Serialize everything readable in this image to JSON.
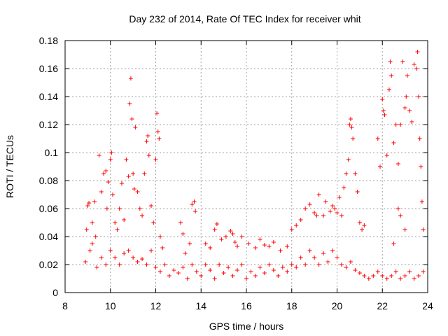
{
  "chart_data": {
    "type": "scatter",
    "title": "Day 232 of 2014, Rate Of TEC Index for receiver whit",
    "xlabel": "GPS time / hours",
    "ylabel": "ROTI / TECUs",
    "xlim": [
      8,
      24
    ],
    "ylim": [
      0,
      0.18
    ],
    "xticks": [
      "8",
      "10",
      "12",
      "14",
      "16",
      "18",
      "20",
      "22",
      "24"
    ],
    "yticks": [
      "0",
      "0.02",
      "0.04",
      "0.06",
      "0.08",
      "0.1",
      "0.12",
      "0.14",
      "0.16",
      "0.18"
    ],
    "grid": true,
    "marker": "plus",
    "color": "#ff0000",
    "series": [
      {
        "name": "ROTI",
        "points": [
          [
            8.9,
            0.022
          ],
          [
            8.95,
            0.045
          ],
          [
            9.0,
            0.062
          ],
          [
            9.05,
            0.064
          ],
          [
            9.1,
            0.03
          ],
          [
            9.2,
            0.05
          ],
          [
            9.3,
            0.065
          ],
          [
            9.35,
            0.04
          ],
          [
            9.5,
            0.098
          ],
          [
            9.6,
            0.072
          ],
          [
            9.7,
            0.085
          ],
          [
            9.8,
            0.087
          ],
          [
            9.85,
            0.06
          ],
          [
            9.9,
            0.079
          ],
          [
            10.0,
            0.095
          ],
          [
            10.05,
            0.1
          ],
          [
            10.1,
            0.07
          ],
          [
            10.2,
            0.05
          ],
          [
            10.3,
            0.045
          ],
          [
            10.4,
            0.06
          ],
          [
            10.5,
            0.078
          ],
          [
            10.6,
            0.052
          ],
          [
            10.7,
            0.095
          ],
          [
            10.8,
            0.083
          ],
          [
            10.85,
            0.135
          ],
          [
            10.9,
            0.153
          ],
          [
            10.95,
            0.124
          ],
          [
            11.0,
            0.085
          ],
          [
            11.05,
            0.074
          ],
          [
            11.1,
            0.118
          ],
          [
            11.2,
            0.072
          ],
          [
            11.3,
            0.06
          ],
          [
            11.4,
            0.055
          ],
          [
            11.5,
            0.085
          ],
          [
            11.6,
            0.108
          ],
          [
            11.65,
            0.112
          ],
          [
            11.7,
            0.098
          ],
          [
            11.8,
            0.062
          ],
          [
            11.9,
            0.05
          ],
          [
            12.0,
            0.095
          ],
          [
            12.05,
            0.128
          ],
          [
            12.1,
            0.115
          ],
          [
            12.15,
            0.11
          ],
          [
            12.2,
            0.04
          ],
          [
            12.3,
            0.032
          ],
          [
            13.1,
            0.05
          ],
          [
            13.2,
            0.042
          ],
          [
            13.3,
            0.028
          ],
          [
            13.5,
            0.035
          ],
          [
            13.6,
            0.063
          ],
          [
            13.7,
            0.065
          ],
          [
            13.75,
            0.058
          ],
          [
            14.2,
            0.035
          ],
          [
            14.4,
            0.032
          ],
          [
            14.6,
            0.045
          ],
          [
            14.7,
            0.049
          ],
          [
            14.9,
            0.038
          ],
          [
            15.1,
            0.04
          ],
          [
            15.3,
            0.044
          ],
          [
            15.4,
            0.042
          ],
          [
            15.5,
            0.036
          ],
          [
            15.6,
            0.033
          ],
          [
            15.8,
            0.04
          ],
          [
            16.1,
            0.035
          ],
          [
            16.4,
            0.032
          ],
          [
            16.6,
            0.038
          ],
          [
            16.8,
            0.034
          ],
          [
            17.0,
            0.033
          ],
          [
            17.2,
            0.036
          ],
          [
            17.5,
            0.03
          ],
          [
            17.8,
            0.033
          ],
          [
            18.0,
            0.045
          ],
          [
            18.2,
            0.048
          ],
          [
            18.4,
            0.052
          ],
          [
            18.6,
            0.06
          ],
          [
            18.8,
            0.063
          ],
          [
            19.0,
            0.057
          ],
          [
            19.1,
            0.055
          ],
          [
            19.2,
            0.07
          ],
          [
            19.4,
            0.055
          ],
          [
            19.5,
            0.065
          ],
          [
            19.7,
            0.058
          ],
          [
            19.8,
            0.062
          ],
          [
            19.9,
            0.06
          ],
          [
            20.0,
            0.057
          ],
          [
            20.1,
            0.068
          ],
          [
            20.2,
            0.055
          ],
          [
            20.3,
            0.075
          ],
          [
            20.4,
            0.085
          ],
          [
            20.5,
            0.095
          ],
          [
            20.55,
            0.12
          ],
          [
            20.6,
            0.124
          ],
          [
            20.65,
            0.118
          ],
          [
            20.7,
            0.11
          ],
          [
            20.8,
            0.085
          ],
          [
            20.9,
            0.072
          ],
          [
            21.0,
            0.05
          ],
          [
            21.1,
            0.045
          ],
          [
            21.2,
            0.048
          ],
          [
            21.8,
            0.11
          ],
          [
            21.9,
            0.09
          ],
          [
            22.0,
            0.138
          ],
          [
            22.05,
            0.13
          ],
          [
            22.1,
            0.127
          ],
          [
            22.2,
            0.098
          ],
          [
            22.3,
            0.145
          ],
          [
            22.35,
            0.165
          ],
          [
            22.4,
            0.155
          ],
          [
            22.5,
            0.107
          ],
          [
            22.6,
            0.12
          ],
          [
            22.7,
            0.092
          ],
          [
            22.8,
            0.12
          ],
          [
            22.9,
            0.165
          ],
          [
            23.0,
            0.132
          ],
          [
            23.05,
            0.14
          ],
          [
            23.1,
            0.155
          ],
          [
            23.2,
            0.13
          ],
          [
            23.3,
            0.122
          ],
          [
            23.4,
            0.163
          ],
          [
            23.5,
            0.16
          ],
          [
            23.55,
            0.172
          ],
          [
            23.6,
            0.14
          ],
          [
            23.65,
            0.11
          ],
          [
            23.7,
            0.09
          ],
          [
            23.75,
            0.065
          ],
          [
            23.8,
            0.045
          ],
          [
            22.7,
            0.06
          ],
          [
            22.8,
            0.055
          ],
          [
            23.0,
            0.045
          ],
          [
            22.5,
            0.035
          ],
          [
            9.2,
            0.035
          ],
          [
            9.4,
            0.018
          ],
          [
            9.6,
            0.025
          ],
          [
            9.8,
            0.02
          ],
          [
            10.0,
            0.03
          ],
          [
            10.2,
            0.025
          ],
          [
            10.4,
            0.02
          ],
          [
            10.6,
            0.028
          ],
          [
            10.8,
            0.03
          ],
          [
            11.0,
            0.025
          ],
          [
            11.2,
            0.022
          ],
          [
            11.4,
            0.024
          ],
          [
            11.6,
            0.02
          ],
          [
            11.8,
            0.03
          ],
          [
            12.0,
            0.018
          ],
          [
            12.2,
            0.015
          ],
          [
            12.4,
            0.02
          ],
          [
            12.6,
            0.012
          ],
          [
            12.8,
            0.016
          ],
          [
            13.0,
            0.014
          ],
          [
            13.2,
            0.018
          ],
          [
            13.4,
            0.01
          ],
          [
            13.6,
            0.02
          ],
          [
            13.8,
            0.015
          ],
          [
            14.0,
            0.012
          ],
          [
            14.2,
            0.02
          ],
          [
            14.4,
            0.016
          ],
          [
            14.6,
            0.01
          ],
          [
            14.8,
            0.02
          ],
          [
            15.0,
            0.014
          ],
          [
            15.2,
            0.018
          ],
          [
            15.4,
            0.012
          ],
          [
            15.6,
            0.016
          ],
          [
            15.8,
            0.02
          ],
          [
            16.0,
            0.01
          ],
          [
            16.2,
            0.015
          ],
          [
            16.4,
            0.012
          ],
          [
            16.6,
            0.018
          ],
          [
            16.8,
            0.014
          ],
          [
            17.0,
            0.02
          ],
          [
            17.2,
            0.016
          ],
          [
            17.4,
            0.012
          ],
          [
            17.6,
            0.018
          ],
          [
            17.8,
            0.015
          ],
          [
            18.0,
            0.02
          ],
          [
            18.2,
            0.018
          ],
          [
            18.4,
            0.025
          ],
          [
            18.6,
            0.02
          ],
          [
            18.8,
            0.03
          ],
          [
            19.0,
            0.025
          ],
          [
            19.2,
            0.02
          ],
          [
            19.4,
            0.028
          ],
          [
            19.6,
            0.022
          ],
          [
            19.8,
            0.03
          ],
          [
            20.0,
            0.025
          ],
          [
            20.2,
            0.02
          ],
          [
            20.4,
            0.018
          ],
          [
            20.6,
            0.022
          ],
          [
            20.8,
            0.016
          ],
          [
            21.0,
            0.014
          ],
          [
            21.2,
            0.012
          ],
          [
            21.4,
            0.01
          ],
          [
            21.6,
            0.012
          ],
          [
            21.8,
            0.015
          ],
          [
            22.0,
            0.012
          ],
          [
            22.2,
            0.01
          ],
          [
            22.4,
            0.012
          ],
          [
            22.6,
            0.015
          ],
          [
            22.8,
            0.01
          ],
          [
            23.0,
            0.012
          ],
          [
            23.2,
            0.015
          ],
          [
            23.4,
            0.01
          ],
          [
            23.6,
            0.012
          ],
          [
            23.8,
            0.015
          ]
        ]
      }
    ]
  }
}
